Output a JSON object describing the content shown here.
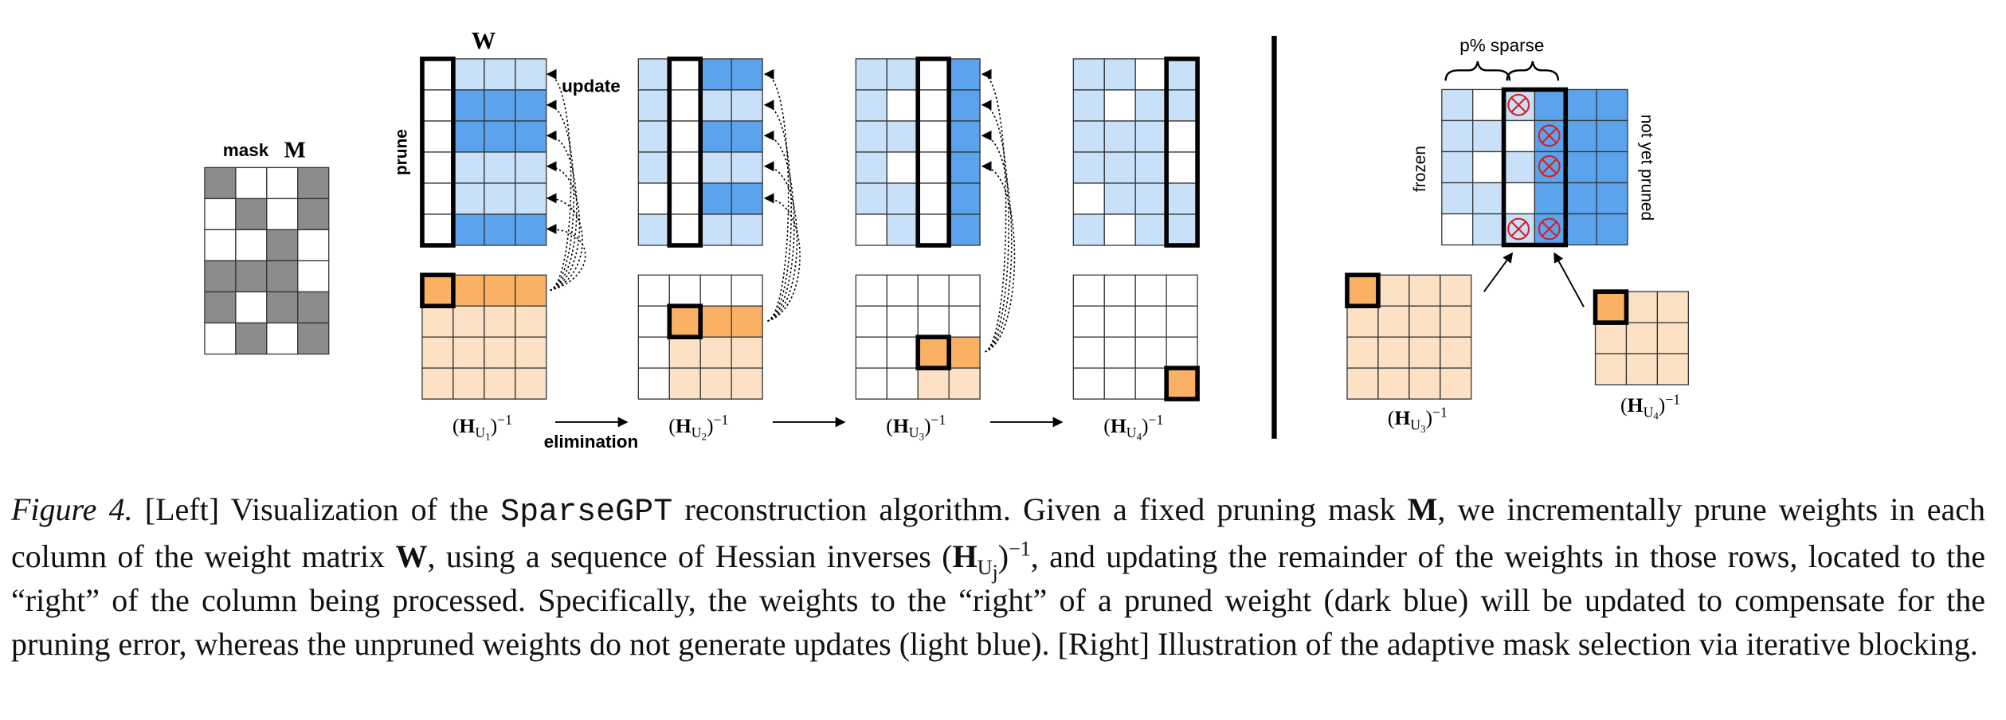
{
  "mask": {
    "label": "mask",
    "symbol": "M"
  },
  "weights": {
    "symbol": "W"
  },
  "labels": {
    "prune": "prune",
    "update": "update",
    "elimination": "elimination",
    "sparse": "p% sparse",
    "frozen": "frozen",
    "not_pruned": "not yet pruned"
  },
  "hessians": [
    {
      "open": "(",
      "symbol": "H",
      "subscript": "U",
      "index": "1",
      "close": ")",
      "exponent": "−1"
    },
    {
      "open": "(",
      "symbol": "H",
      "subscript": "U",
      "index": "2",
      "close": ")",
      "exponent": "−1"
    },
    {
      "open": "(",
      "symbol": "H",
      "subscript": "U",
      "index": "3",
      "close": ")",
      "exponent": "−1"
    },
    {
      "open": "(",
      "symbol": "H",
      "subscript": "U",
      "index": "4",
      "close": ")",
      "exponent": "−1"
    },
    {
      "open": "(",
      "symbol": "H",
      "subscript": "U",
      "index": "3",
      "close": ")",
      "exponent": "−1"
    },
    {
      "open": "(",
      "symbol": "H",
      "subscript": "U",
      "index": "4",
      "close": ")",
      "exponent": "−1"
    }
  ],
  "caption": {
    "figure": "Figure 4.",
    "text_1": " [Left] Visualization of the ",
    "code": "SparseGPT",
    "text_2": " reconstruction algorithm. Given a fixed pruning mask ",
    "mask": "M",
    "text_3": ", we incrementally prune weights in each column of the weight matrix ",
    "matrix": "W",
    "text_4": ", using a sequence of Hessian inverses ",
    "math": {
      "open": "(",
      "symbol": "H",
      "subscript": "U",
      "index": "j",
      "close": ")",
      "exponent": "−1"
    },
    "text_5": ", and updating the remainder of the weights in those rows, located to the “right” of the column being processed. Specifically, the weights to the “right” of a pruned weight (dark blue) will be updated to compensate for the pruning error, whereas the unpruned weights do not generate updates (light blue). [Right] Illustration of the adaptive mask selection via iterative blocking."
  }
}
